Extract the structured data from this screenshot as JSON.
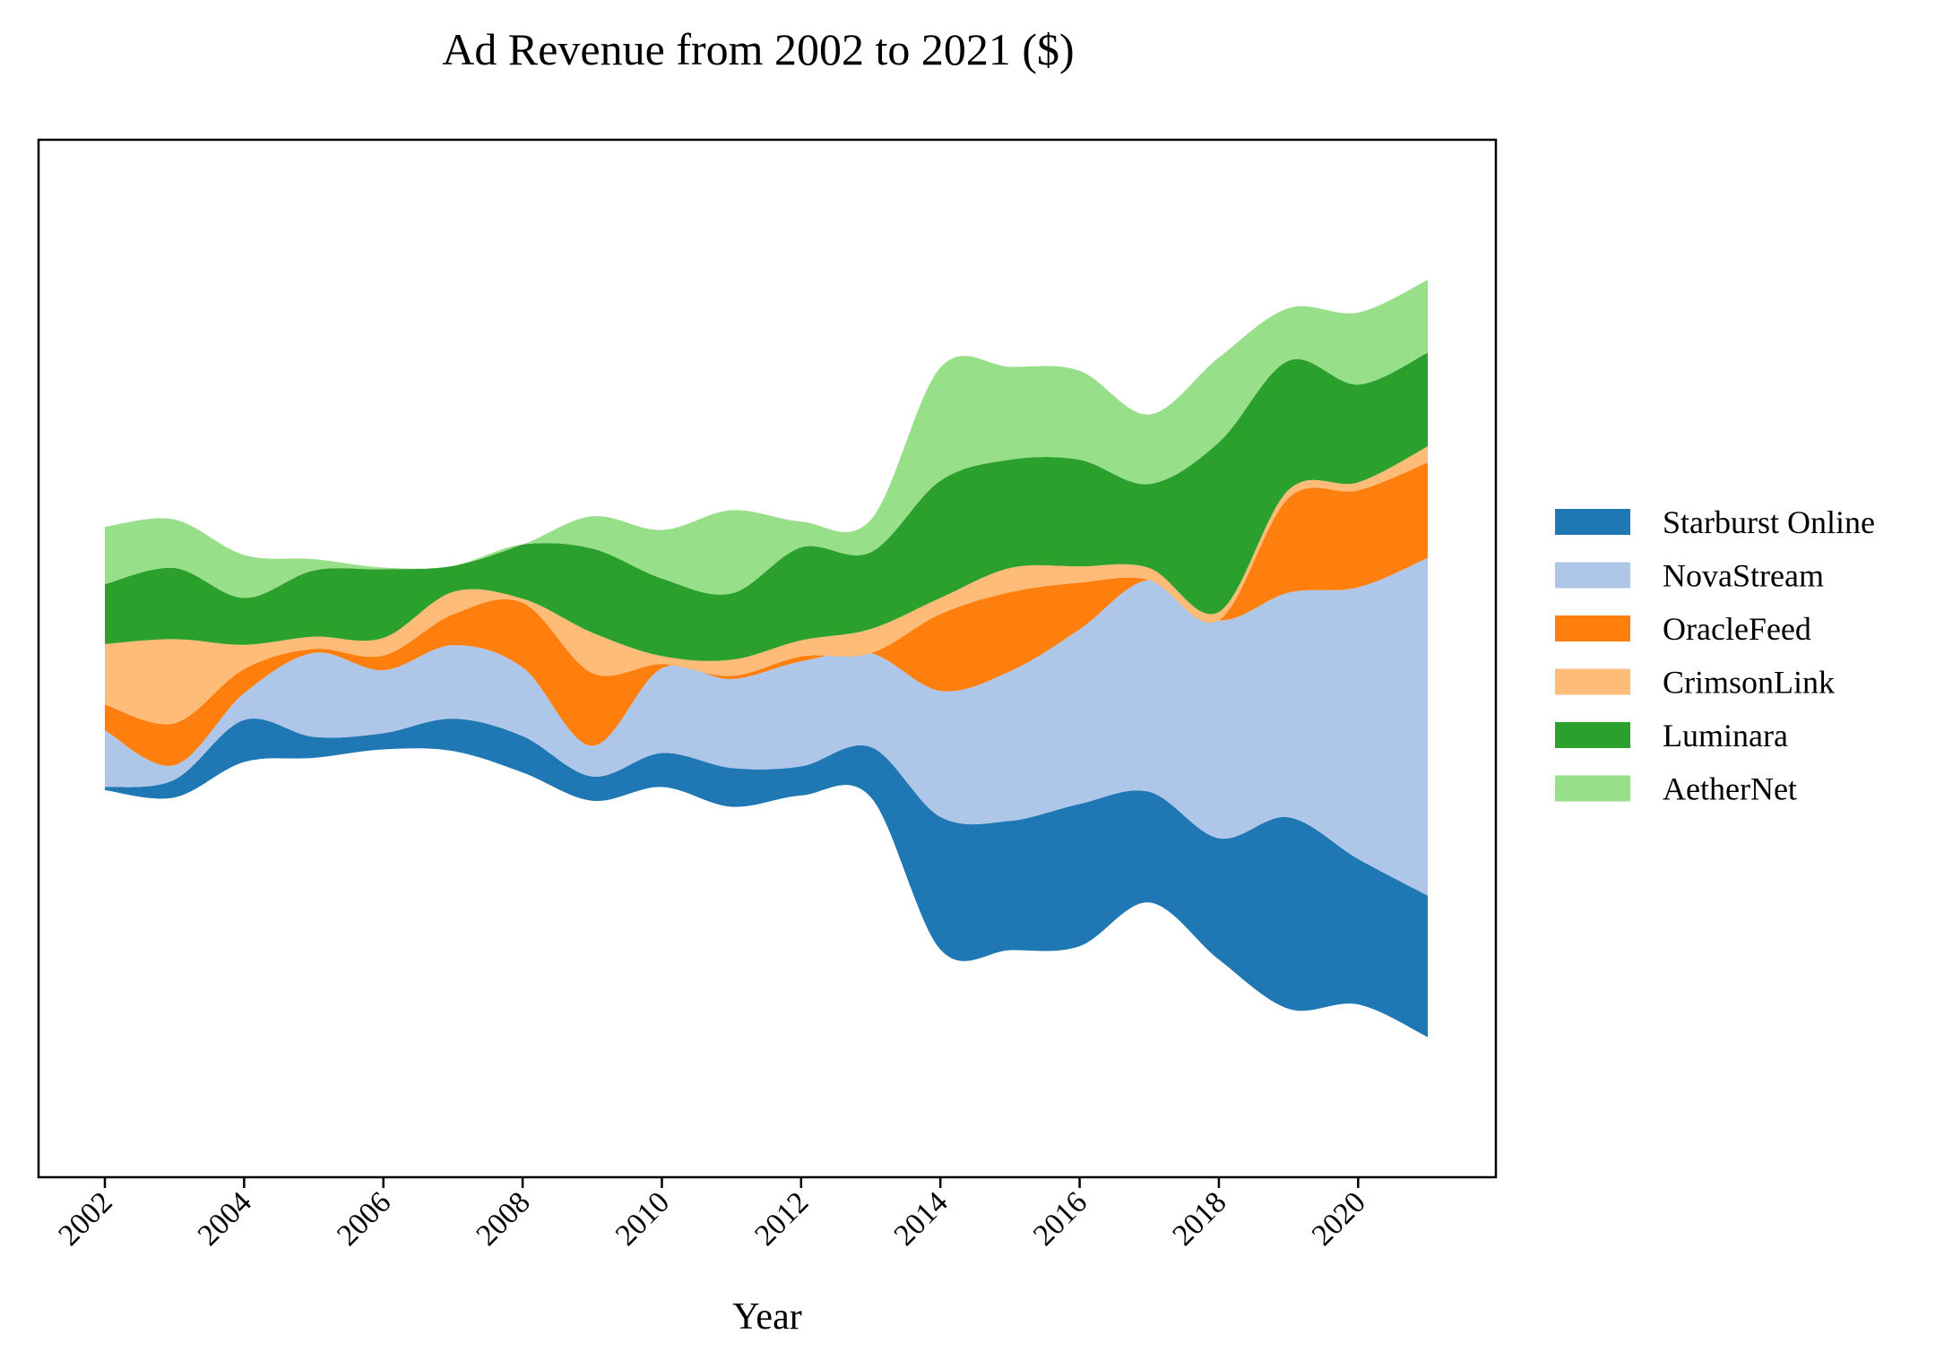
{
  "chart_data": {
    "type": "area",
    "subtype": "streamgraph",
    "title": "Ad Revenue from 2002 to 2021 ($)",
    "xlabel": "Year",
    "ylabel": "",
    "x": [
      2002,
      2003,
      2004,
      2005,
      2006,
      2007,
      2008,
      2009,
      2010,
      2011,
      2012,
      2013,
      2014,
      2015,
      2016,
      2017,
      2018,
      2019,
      2020,
      2021
    ],
    "xticks": [
      "2002",
      "2004",
      "2006",
      "2008",
      "2010",
      "2012",
      "2014",
      "2016",
      "2018",
      "2020"
    ],
    "y_axis_visible": false,
    "grid": false,
    "legend_position": "right",
    "series": [
      {
        "name": "Starburst Online",
        "color": "#1f77b4",
        "values": [
          4,
          22,
          52,
          26,
          20,
          40,
          45,
          30,
          42,
          48,
          36,
          62,
          164,
          160,
          176,
          137,
          150,
          237,
          180,
          175
        ]
      },
      {
        "name": "NovaStream",
        "color": "#aec7e8",
        "values": [
          70,
          18,
          33,
          104,
          78,
          91,
          85,
          38,
          105,
          110,
          130,
          116,
          156,
          185,
          216,
          262,
          270,
          278,
          336,
          418
        ]
      },
      {
        "name": "OracleFeed",
        "color": "#ff7f0e",
        "values": [
          32,
          52,
          30,
          5,
          18,
          38,
          80,
          90,
          5,
          4,
          6,
          0,
          95,
          98,
          58,
          0,
          0,
          117,
          120,
          118
        ]
      },
      {
        "name": "CrimsonLink",
        "color": "#ffbb78",
        "values": [
          75,
          104,
          30,
          15,
          22,
          28,
          5,
          50,
          10,
          20,
          20,
          30,
          20,
          30,
          20,
          15,
          10,
          10,
          10,
          20
        ]
      },
      {
        "name": "Luminara",
        "color": "#2ca02c",
        "values": [
          74,
          88,
          58,
          82,
          85,
          32,
          67,
          104,
          96,
          82,
          115,
          95,
          145,
          134,
          132,
          104,
          210,
          160,
          121,
          116
        ]
      },
      {
        "name": "AetherNet",
        "color": "#98df8a",
        "values": [
          71,
          60,
          53,
          14,
          2,
          0,
          0,
          40,
          60,
          103,
          32,
          40,
          140,
          115,
          110,
          86,
          105,
          65,
          89,
          90
        ]
      }
    ]
  }
}
